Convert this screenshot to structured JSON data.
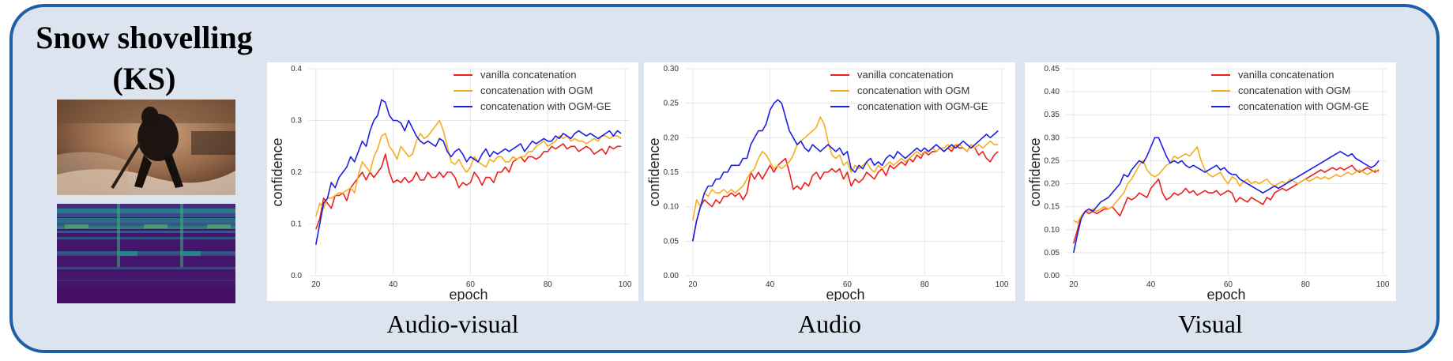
{
  "figure": {
    "title_lines": [
      "Snow shovelling",
      "(KS)"
    ],
    "captions": [
      "Audio-visual",
      "Audio",
      "Visual"
    ]
  },
  "colors": {
    "vanilla": "#ee1f1f",
    "ogm": "#f5ad21",
    "ogm_ge": "#1c20e0",
    "panel_border": "#1f5fa8",
    "panel_fill": "#dbe4ef"
  },
  "chart_data": [
    {
      "type": "line",
      "title": "",
      "xlabel": "epoch",
      "ylabel": "confidence",
      "xlim": [
        18,
        101
      ],
      "ylim": [
        0,
        0.4
      ],
      "xticks": [
        20,
        40,
        60,
        80,
        100
      ],
      "yticks": [
        0.0,
        0.1,
        0.2,
        0.3,
        0.4
      ],
      "ytick_labels": [
        "0.0",
        "0.1",
        "0.2",
        "0.3",
        "0.4"
      ],
      "grid": true,
      "legend_position": "top-right",
      "x": [
        20,
        21,
        22,
        23,
        24,
        25,
        26,
        27,
        28,
        29,
        30,
        31,
        32,
        33,
        34,
        35,
        36,
        37,
        38,
        39,
        40,
        41,
        42,
        43,
        44,
        45,
        46,
        47,
        48,
        49,
        50,
        51,
        52,
        53,
        54,
        55,
        56,
        57,
        58,
        59,
        60,
        61,
        62,
        63,
        64,
        65,
        66,
        67,
        68,
        69,
        70,
        71,
        72,
        73,
        74,
        75,
        76,
        77,
        78,
        79,
        80,
        81,
        82,
        83,
        84,
        85,
        86,
        87,
        88,
        89,
        90,
        91,
        92,
        93,
        94,
        95,
        96,
        97,
        98,
        99
      ],
      "series": [
        {
          "name": "vanilla concatenation",
          "color_key": "vanilla",
          "values": [
            0.09,
            0.11,
            0.15,
            0.14,
            0.13,
            0.155,
            0.155,
            0.16,
            0.145,
            0.17,
            0.18,
            0.19,
            0.2,
            0.185,
            0.2,
            0.19,
            0.2,
            0.21,
            0.235,
            0.2,
            0.18,
            0.185,
            0.18,
            0.19,
            0.18,
            0.185,
            0.2,
            0.185,
            0.185,
            0.2,
            0.19,
            0.19,
            0.2,
            0.19,
            0.2,
            0.2,
            0.19,
            0.17,
            0.18,
            0.175,
            0.18,
            0.2,
            0.19,
            0.175,
            0.19,
            0.19,
            0.18,
            0.2,
            0.2,
            0.21,
            0.2,
            0.22,
            0.225,
            0.23,
            0.22,
            0.23,
            0.23,
            0.225,
            0.23,
            0.24,
            0.24,
            0.25,
            0.245,
            0.25,
            0.255,
            0.245,
            0.25,
            0.25,
            0.24,
            0.245,
            0.25,
            0.245,
            0.235,
            0.24,
            0.245,
            0.235,
            0.25,
            0.245,
            0.25,
            0.25
          ]
        },
        {
          "name": "concatenation with OGM",
          "color_key": "ogm",
          "values": [
            0.115,
            0.14,
            0.13,
            0.15,
            0.15,
            0.155,
            0.16,
            0.16,
            0.165,
            0.17,
            0.16,
            0.195,
            0.22,
            0.21,
            0.2,
            0.23,
            0.245,
            0.27,
            0.275,
            0.25,
            0.24,
            0.225,
            0.25,
            0.24,
            0.23,
            0.235,
            0.26,
            0.275,
            0.265,
            0.27,
            0.28,
            0.29,
            0.3,
            0.28,
            0.25,
            0.22,
            0.215,
            0.225,
            0.21,
            0.2,
            0.21,
            0.23,
            0.22,
            0.215,
            0.21,
            0.225,
            0.22,
            0.23,
            0.23,
            0.22,
            0.22,
            0.23,
            0.225,
            0.23,
            0.23,
            0.24,
            0.24,
            0.25,
            0.255,
            0.26,
            0.25,
            0.255,
            0.26,
            0.27,
            0.265,
            0.27,
            0.26,
            0.265,
            0.26,
            0.26,
            0.255,
            0.26,
            0.265,
            0.26,
            0.27,
            0.27,
            0.265,
            0.27,
            0.27,
            0.265
          ]
        },
        {
          "name": "concatenation with OGM-GE",
          "color_key": "ogm_ge",
          "values": [
            0.06,
            0.1,
            0.14,
            0.15,
            0.18,
            0.17,
            0.19,
            0.2,
            0.21,
            0.23,
            0.22,
            0.24,
            0.26,
            0.25,
            0.28,
            0.3,
            0.31,
            0.34,
            0.335,
            0.31,
            0.3,
            0.3,
            0.295,
            0.28,
            0.3,
            0.285,
            0.27,
            0.26,
            0.255,
            0.26,
            0.255,
            0.25,
            0.265,
            0.26,
            0.24,
            0.23,
            0.24,
            0.245,
            0.235,
            0.22,
            0.23,
            0.225,
            0.22,
            0.235,
            0.245,
            0.23,
            0.24,
            0.235,
            0.24,
            0.245,
            0.24,
            0.245,
            0.25,
            0.255,
            0.24,
            0.25,
            0.26,
            0.255,
            0.26,
            0.265,
            0.26,
            0.26,
            0.27,
            0.265,
            0.275,
            0.27,
            0.265,
            0.275,
            0.28,
            0.275,
            0.27,
            0.275,
            0.27,
            0.265,
            0.27,
            0.275,
            0.28,
            0.27,
            0.28,
            0.275
          ]
        }
      ]
    },
    {
      "type": "line",
      "title": "",
      "xlabel": "epoch",
      "ylabel": "confidence",
      "xlim": [
        18,
        101
      ],
      "ylim": [
        0,
        0.3
      ],
      "xticks": [
        20,
        40,
        60,
        80,
        100
      ],
      "yticks": [
        0.0,
        0.05,
        0.1,
        0.15,
        0.2,
        0.25,
        0.3
      ],
      "ytick_labels": [
        "0.00",
        "0.05",
        "0.10",
        "0.15",
        "0.20",
        "0.25",
        "0.30"
      ],
      "grid": true,
      "legend_position": "top-right",
      "x": [
        20,
        21,
        22,
        23,
        24,
        25,
        26,
        27,
        28,
        29,
        30,
        31,
        32,
        33,
        34,
        35,
        36,
        37,
        38,
        39,
        40,
        41,
        42,
        43,
        44,
        45,
        46,
        47,
        48,
        49,
        50,
        51,
        52,
        53,
        54,
        55,
        56,
        57,
        58,
        59,
        60,
        61,
        62,
        63,
        64,
        65,
        66,
        67,
        68,
        69,
        70,
        71,
        72,
        73,
        74,
        75,
        76,
        77,
        78,
        79,
        80,
        81,
        82,
        83,
        84,
        85,
        86,
        87,
        88,
        89,
        90,
        91,
        92,
        93,
        94,
        95,
        96,
        97,
        98,
        99
      ],
      "series": [
        {
          "name": "vanilla concatenation",
          "color_key": "vanilla",
          "values": [
            0.05,
            0.08,
            0.1,
            0.11,
            0.105,
            0.1,
            0.11,
            0.105,
            0.115,
            0.115,
            0.12,
            0.115,
            0.12,
            0.11,
            0.12,
            0.15,
            0.14,
            0.15,
            0.14,
            0.15,
            0.16,
            0.15,
            0.16,
            0.165,
            0.17,
            0.15,
            0.125,
            0.13,
            0.125,
            0.135,
            0.13,
            0.145,
            0.15,
            0.14,
            0.15,
            0.15,
            0.155,
            0.15,
            0.155,
            0.14,
            0.15,
            0.13,
            0.14,
            0.135,
            0.14,
            0.15,
            0.145,
            0.14,
            0.15,
            0.155,
            0.145,
            0.16,
            0.155,
            0.16,
            0.165,
            0.16,
            0.17,
            0.165,
            0.175,
            0.17,
            0.18,
            0.175,
            0.18,
            0.18,
            0.185,
            0.18,
            0.185,
            0.18,
            0.19,
            0.185,
            0.185,
            0.18,
            0.19,
            0.185,
            0.175,
            0.18,
            0.17,
            0.165,
            0.175,
            0.18
          ]
        },
        {
          "name": "concatenation with OGM",
          "color_key": "ogm",
          "values": [
            0.08,
            0.11,
            0.1,
            0.12,
            0.115,
            0.125,
            0.12,
            0.12,
            0.125,
            0.12,
            0.125,
            0.12,
            0.125,
            0.13,
            0.14,
            0.15,
            0.155,
            0.17,
            0.18,
            0.175,
            0.165,
            0.155,
            0.16,
            0.155,
            0.16,
            0.165,
            0.175,
            0.19,
            0.195,
            0.2,
            0.205,
            0.21,
            0.215,
            0.23,
            0.22,
            0.195,
            0.175,
            0.17,
            0.175,
            0.16,
            0.165,
            0.15,
            0.16,
            0.155,
            0.16,
            0.165,
            0.155,
            0.15,
            0.16,
            0.155,
            0.16,
            0.165,
            0.16,
            0.165,
            0.17,
            0.165,
            0.17,
            0.175,
            0.18,
            0.175,
            0.18,
            0.18,
            0.185,
            0.18,
            0.185,
            0.185,
            0.19,
            0.185,
            0.19,
            0.19,
            0.185,
            0.18,
            0.19,
            0.185,
            0.19,
            0.185,
            0.19,
            0.195,
            0.19,
            0.19
          ]
        },
        {
          "name": "concatenation with OGM-GE",
          "color_key": "ogm_ge",
          "values": [
            0.05,
            0.08,
            0.1,
            0.12,
            0.13,
            0.13,
            0.14,
            0.14,
            0.15,
            0.15,
            0.16,
            0.16,
            0.16,
            0.17,
            0.17,
            0.19,
            0.2,
            0.21,
            0.21,
            0.22,
            0.24,
            0.25,
            0.255,
            0.25,
            0.23,
            0.21,
            0.2,
            0.19,
            0.195,
            0.185,
            0.18,
            0.19,
            0.185,
            0.18,
            0.185,
            0.19,
            0.185,
            0.18,
            0.185,
            0.175,
            0.18,
            0.155,
            0.15,
            0.16,
            0.155,
            0.165,
            0.17,
            0.16,
            0.165,
            0.16,
            0.17,
            0.175,
            0.17,
            0.18,
            0.175,
            0.17,
            0.175,
            0.18,
            0.185,
            0.18,
            0.185,
            0.18,
            0.185,
            0.19,
            0.185,
            0.18,
            0.185,
            0.19,
            0.185,
            0.19,
            0.195,
            0.19,
            0.185,
            0.19,
            0.195,
            0.2,
            0.205,
            0.2,
            0.205,
            0.21
          ]
        }
      ]
    },
    {
      "type": "line",
      "title": "",
      "xlabel": "epoch",
      "ylabel": "confidence",
      "xlim": [
        18,
        101
      ],
      "ylim": [
        0,
        0.45
      ],
      "xticks": [
        20,
        40,
        60,
        80,
        100
      ],
      "yticks": [
        0.0,
        0.05,
        0.1,
        0.15,
        0.2,
        0.25,
        0.3,
        0.35,
        0.4,
        0.45
      ],
      "ytick_labels": [
        "0.00",
        "0.05",
        "0.10",
        "0.15",
        "0.20",
        "0.25",
        "0.30",
        "0.35",
        "0.40",
        "0.45"
      ],
      "grid": true,
      "legend_position": "top-right",
      "x": [
        20,
        21,
        22,
        23,
        24,
        25,
        26,
        27,
        28,
        29,
        30,
        31,
        32,
        33,
        34,
        35,
        36,
        37,
        38,
        39,
        40,
        41,
        42,
        43,
        44,
        45,
        46,
        47,
        48,
        49,
        50,
        51,
        52,
        53,
        54,
        55,
        56,
        57,
        58,
        59,
        60,
        61,
        62,
        63,
        64,
        65,
        66,
        67,
        68,
        69,
        70,
        71,
        72,
        73,
        74,
        75,
        76,
        77,
        78,
        79,
        80,
        81,
        82,
        83,
        84,
        85,
        86,
        87,
        88,
        89,
        90,
        91,
        92,
        93,
        94,
        95,
        96,
        97,
        98,
        99
      ],
      "series": [
        {
          "name": "vanilla concatenation",
          "color_key": "vanilla",
          "values": [
            0.07,
            0.1,
            0.13,
            0.14,
            0.135,
            0.14,
            0.135,
            0.14,
            0.145,
            0.145,
            0.15,
            0.14,
            0.13,
            0.15,
            0.17,
            0.165,
            0.17,
            0.18,
            0.175,
            0.17,
            0.19,
            0.2,
            0.21,
            0.18,
            0.165,
            0.17,
            0.18,
            0.175,
            0.18,
            0.19,
            0.18,
            0.185,
            0.175,
            0.18,
            0.185,
            0.18,
            0.18,
            0.185,
            0.175,
            0.18,
            0.185,
            0.18,
            0.16,
            0.17,
            0.165,
            0.16,
            0.17,
            0.165,
            0.16,
            0.155,
            0.17,
            0.165,
            0.18,
            0.185,
            0.19,
            0.185,
            0.19,
            0.195,
            0.2,
            0.205,
            0.21,
            0.215,
            0.22,
            0.225,
            0.23,
            0.225,
            0.23,
            0.235,
            0.23,
            0.235,
            0.23,
            0.235,
            0.24,
            0.23,
            0.225,
            0.23,
            0.235,
            0.23,
            0.225,
            0.23
          ]
        },
        {
          "name": "concatenation with OGM",
          "color_key": "ogm",
          "values": [
            0.12,
            0.115,
            0.13,
            0.14,
            0.14,
            0.145,
            0.14,
            0.145,
            0.15,
            0.145,
            0.15,
            0.16,
            0.17,
            0.18,
            0.2,
            0.21,
            0.225,
            0.24,
            0.25,
            0.23,
            0.22,
            0.215,
            0.22,
            0.23,
            0.24,
            0.245,
            0.26,
            0.255,
            0.26,
            0.265,
            0.26,
            0.27,
            0.28,
            0.25,
            0.23,
            0.22,
            0.215,
            0.22,
            0.225,
            0.21,
            0.2,
            0.215,
            0.21,
            0.195,
            0.205,
            0.21,
            0.2,
            0.205,
            0.2,
            0.205,
            0.21,
            0.2,
            0.195,
            0.2,
            0.205,
            0.2,
            0.21,
            0.205,
            0.2,
            0.205,
            0.21,
            0.205,
            0.21,
            0.215,
            0.21,
            0.215,
            0.21,
            0.215,
            0.22,
            0.215,
            0.22,
            0.225,
            0.22,
            0.225,
            0.23,
            0.225,
            0.22,
            0.225,
            0.23,
            0.225
          ]
        },
        {
          "name": "concatenation with OGM-GE",
          "color_key": "ogm_ge",
          "values": [
            0.05,
            0.09,
            0.125,
            0.14,
            0.145,
            0.14,
            0.15,
            0.16,
            0.165,
            0.17,
            0.18,
            0.19,
            0.2,
            0.22,
            0.215,
            0.23,
            0.24,
            0.25,
            0.245,
            0.26,
            0.28,
            0.3,
            0.3,
            0.28,
            0.26,
            0.245,
            0.25,
            0.245,
            0.25,
            0.24,
            0.235,
            0.24,
            0.235,
            0.23,
            0.225,
            0.23,
            0.235,
            0.24,
            0.23,
            0.235,
            0.225,
            0.22,
            0.22,
            0.21,
            0.205,
            0.2,
            0.195,
            0.19,
            0.185,
            0.18,
            0.185,
            0.19,
            0.195,
            0.19,
            0.195,
            0.2,
            0.205,
            0.21,
            0.215,
            0.22,
            0.225,
            0.23,
            0.235,
            0.24,
            0.245,
            0.25,
            0.255,
            0.26,
            0.265,
            0.27,
            0.265,
            0.26,
            0.265,
            0.255,
            0.25,
            0.245,
            0.24,
            0.235,
            0.24,
            0.25
          ]
        }
      ]
    }
  ]
}
